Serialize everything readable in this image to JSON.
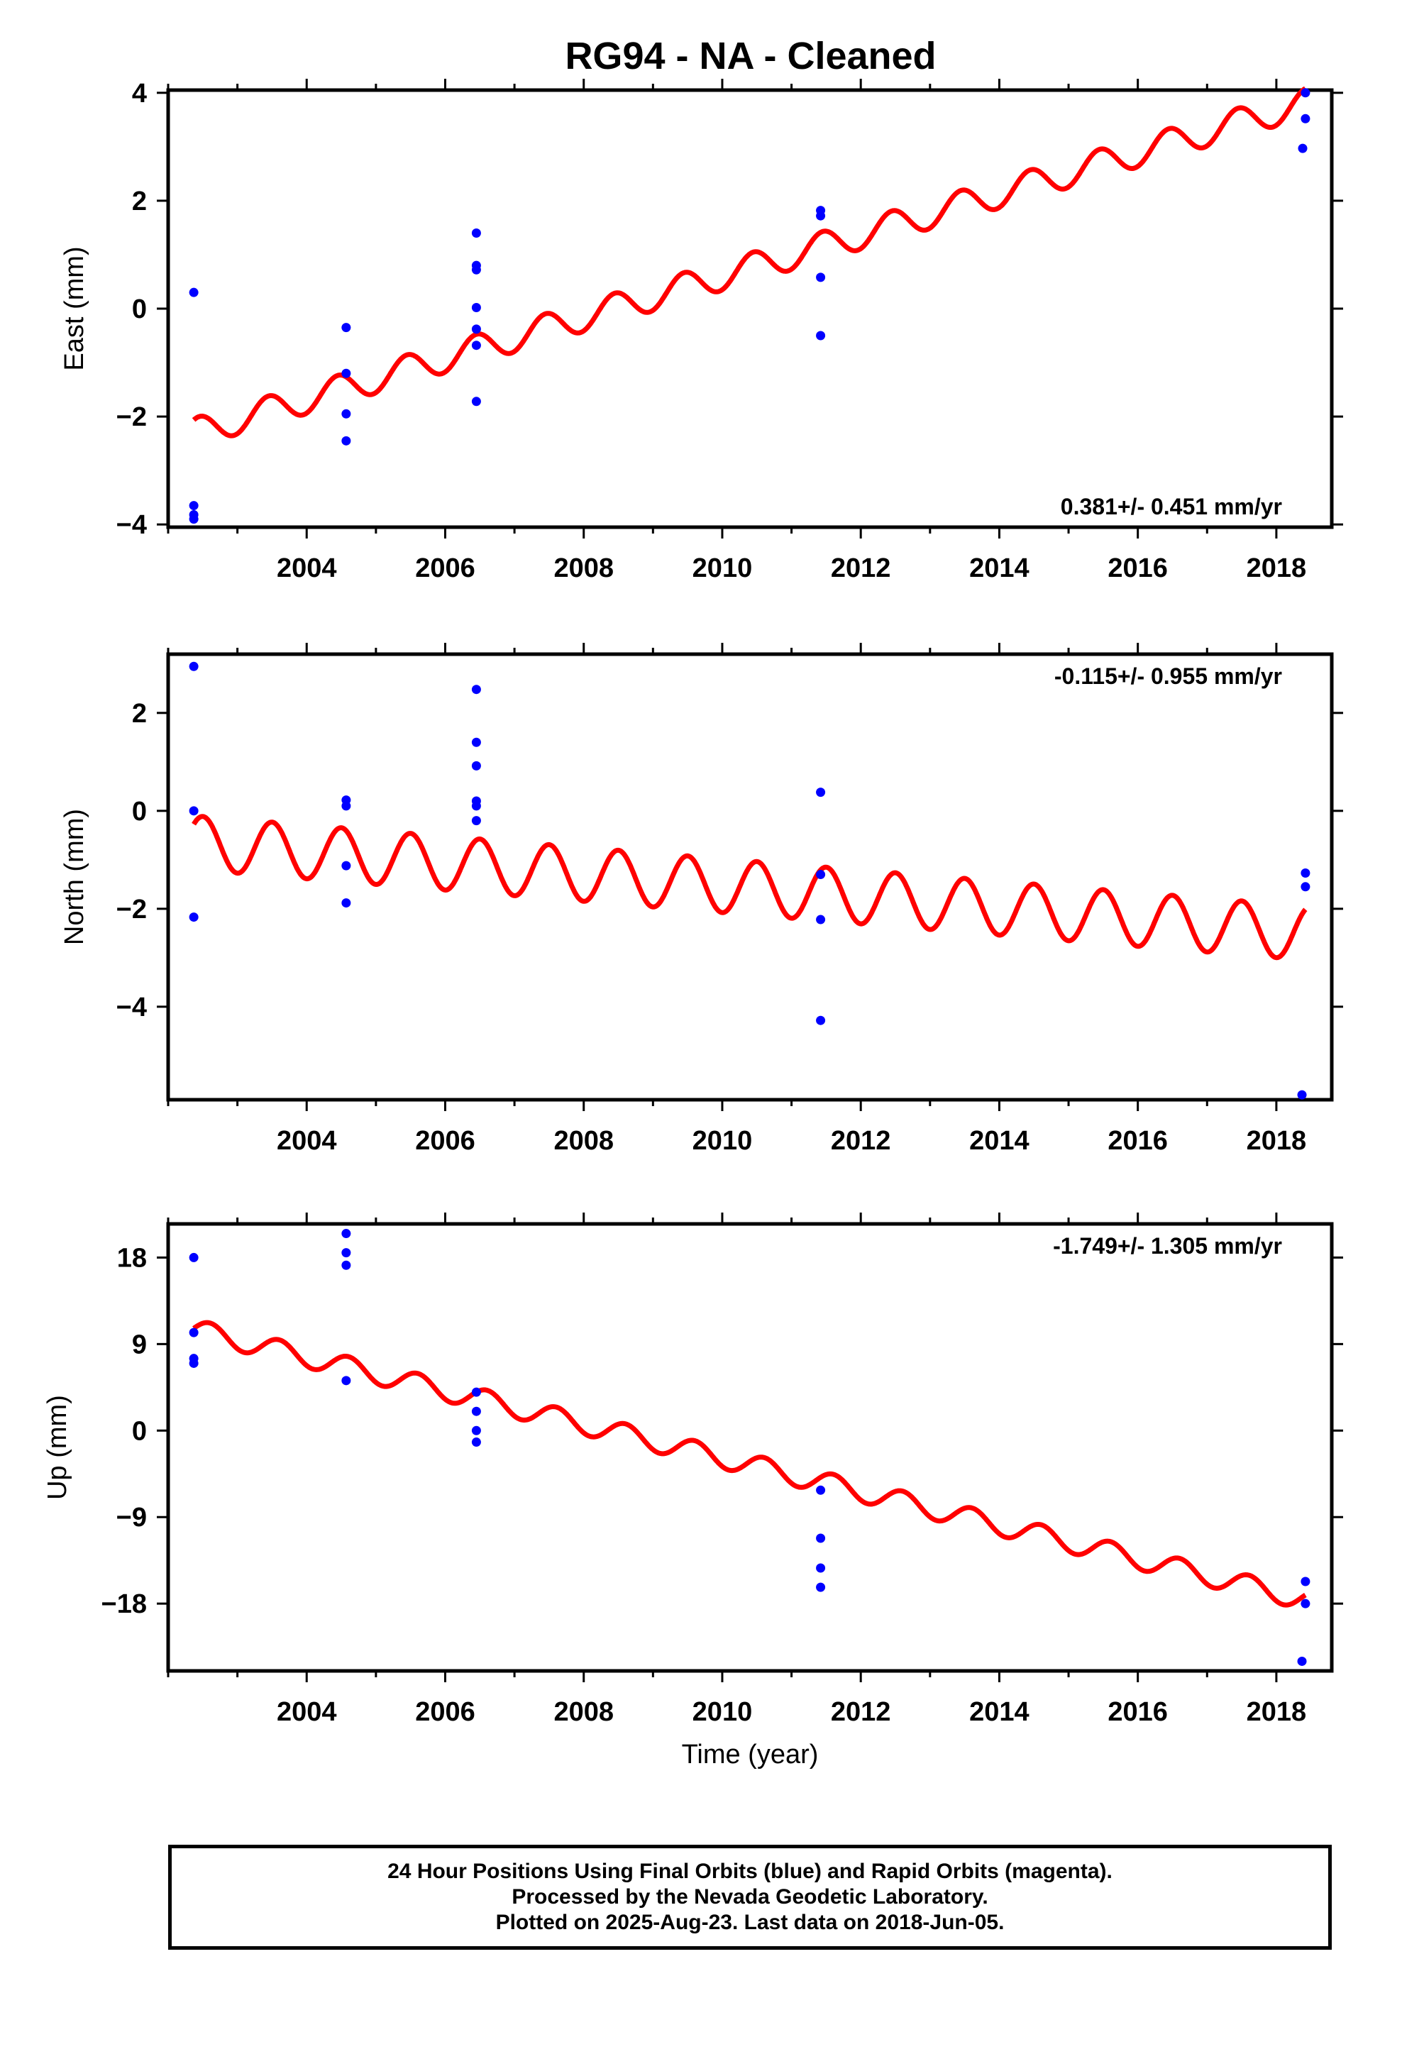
{
  "title": "RG94  - NA - Cleaned",
  "colors": {
    "model": "#ff0000",
    "points": "#0000ff",
    "frame": "#000000"
  },
  "chart_data": [
    {
      "type": "scatter",
      "component": "East",
      "ylabel": "East (mm)",
      "xlabel": "",
      "xlim": [
        2002.0,
        2018.8
      ],
      "ylim": [
        -4.05,
        4.05
      ],
      "xticks": [
        2004,
        2006,
        2008,
        2010,
        2012,
        2014,
        2016,
        2018
      ],
      "yticks": [
        -4,
        -2,
        0,
        2,
        4
      ],
      "ytick_labels": [
        "−4",
        "−2",
        "0",
        "2",
        "4"
      ],
      "rate_label": "0.381+/- 0.451 mm/yr",
      "rate_position": "bottom-right",
      "model": {
        "color": "#ff0000",
        "start": 2002.37,
        "end": 2018.42,
        "y0": -2.3,
        "slope": 0.381,
        "amplitude": 0.27,
        "phase_year": 2002.45
      },
      "points": [
        {
          "x": 2002.37,
          "y": 0.3
        },
        {
          "x": 2002.37,
          "y": -3.65
        },
        {
          "x": 2002.37,
          "y": -3.82
        },
        {
          "x": 2002.37,
          "y": -3.9
        },
        {
          "x": 2004.57,
          "y": -0.35
        },
        {
          "x": 2004.57,
          "y": -1.2
        },
        {
          "x": 2004.57,
          "y": -1.95
        },
        {
          "x": 2004.57,
          "y": -2.45
        },
        {
          "x": 2006.45,
          "y": 1.4
        },
        {
          "x": 2006.45,
          "y": 0.8
        },
        {
          "x": 2006.45,
          "y": 0.72
        },
        {
          "x": 2006.45,
          "y": 0.02
        },
        {
          "x": 2006.45,
          "y": -0.38
        },
        {
          "x": 2006.45,
          "y": -0.68
        },
        {
          "x": 2006.45,
          "y": -1.72
        },
        {
          "x": 2011.42,
          "y": 1.82
        },
        {
          "x": 2011.42,
          "y": 1.72
        },
        {
          "x": 2011.42,
          "y": 0.58
        },
        {
          "x": 2011.42,
          "y": -0.5
        },
        {
          "x": 2018.42,
          "y": 4.0
        },
        {
          "x": 2018.42,
          "y": 3.52
        },
        {
          "x": 2018.38,
          "y": 2.97
        }
      ]
    },
    {
      "type": "scatter",
      "component": "North",
      "ylabel": "North (mm)",
      "xlabel": "",
      "xlim": [
        2002.0,
        2018.8
      ],
      "ylim": [
        -5.9,
        3.2
      ],
      "xticks": [
        2004,
        2006,
        2008,
        2010,
        2012,
        2014,
        2016,
        2018
      ],
      "yticks": [
        -4,
        -2,
        0,
        2
      ],
      "ytick_labels": [
        "−4",
        "−2",
        "0",
        "2"
      ],
      "rate_label": "-0.115+/- 0.955 mm/yr",
      "rate_position": "top-right",
      "model": {
        "color": "#ff0000",
        "start": 2002.37,
        "end": 2018.42,
        "y0": -0.65,
        "slope": -0.115,
        "amplitude": 0.55,
        "phase_year": 2002.5
      },
      "points": [
        {
          "x": 2002.37,
          "y": 2.95
        },
        {
          "x": 2002.37,
          "y": 0.0
        },
        {
          "x": 2002.37,
          "y": -2.17
        },
        {
          "x": 2004.57,
          "y": 0.22
        },
        {
          "x": 2004.57,
          "y": 0.1
        },
        {
          "x": 2004.57,
          "y": -1.12
        },
        {
          "x": 2004.57,
          "y": -1.88
        },
        {
          "x": 2006.45,
          "y": 2.48
        },
        {
          "x": 2006.45,
          "y": 1.4
        },
        {
          "x": 2006.45,
          "y": 0.92
        },
        {
          "x": 2006.45,
          "y": 0.2
        },
        {
          "x": 2006.45,
          "y": 0.1
        },
        {
          "x": 2006.45,
          "y": -0.2
        },
        {
          "x": 2011.42,
          "y": 0.38
        },
        {
          "x": 2011.42,
          "y": -1.3
        },
        {
          "x": 2011.42,
          "y": -2.22
        },
        {
          "x": 2011.42,
          "y": -4.28
        },
        {
          "x": 2018.42,
          "y": -1.27
        },
        {
          "x": 2018.42,
          "y": -1.55
        },
        {
          "x": 2018.37,
          "y": -5.8
        }
      ]
    },
    {
      "type": "scatter",
      "component": "Up",
      "ylabel": "Up (mm)",
      "xlabel": "Time (year)",
      "xlim": [
        2002.0,
        2018.8
      ],
      "ylim": [
        -25.0,
        21.5
      ],
      "xticks": [
        2004,
        2006,
        2008,
        2010,
        2012,
        2014,
        2016,
        2018
      ],
      "yticks": [
        -18,
        -9,
        0,
        9,
        18
      ],
      "ytick_labels": [
        "−18",
        "−9",
        "0",
        "9",
        "18"
      ],
      "rate_label": "-1.749+/- 1.305 mm/yr",
      "rate_position": "top-right",
      "model": {
        "color": "#ff0000",
        "start": 2002.37,
        "end": 2018.42,
        "y0": 10.5,
        "slope": -1.749,
        "amplitude": 1.1,
        "phase_year": 2002.6
      },
      "points": [
        {
          "x": 2002.37,
          "y": 18.0
        },
        {
          "x": 2002.37,
          "y": 10.2
        },
        {
          "x": 2002.37,
          "y": 7.5
        },
        {
          "x": 2002.37,
          "y": 7.0
        },
        {
          "x": 2004.57,
          "y": 20.5
        },
        {
          "x": 2004.57,
          "y": 18.5
        },
        {
          "x": 2004.57,
          "y": 17.2
        },
        {
          "x": 2004.57,
          "y": 5.2
        },
        {
          "x": 2006.45,
          "y": 4.0
        },
        {
          "x": 2006.45,
          "y": 2.0
        },
        {
          "x": 2006.45,
          "y": 0.0
        },
        {
          "x": 2006.45,
          "y": -1.2
        },
        {
          "x": 2011.42,
          "y": -6.2
        },
        {
          "x": 2011.42,
          "y": -11.2
        },
        {
          "x": 2011.42,
          "y": -14.3
        },
        {
          "x": 2011.42,
          "y": -16.3
        },
        {
          "x": 2018.42,
          "y": -15.7
        },
        {
          "x": 2018.42,
          "y": -18.0
        },
        {
          "x": 2018.37,
          "y": -24.0
        }
      ]
    }
  ],
  "footer": {
    "line1": "24 Hour Positions Using Final Orbits (blue) and Rapid Orbits (magenta).",
    "line2": "Processed by the Nevada Geodetic Laboratory.",
    "line3": "Plotted on 2025-Aug-23. Last data on 2018-Jun-05."
  }
}
